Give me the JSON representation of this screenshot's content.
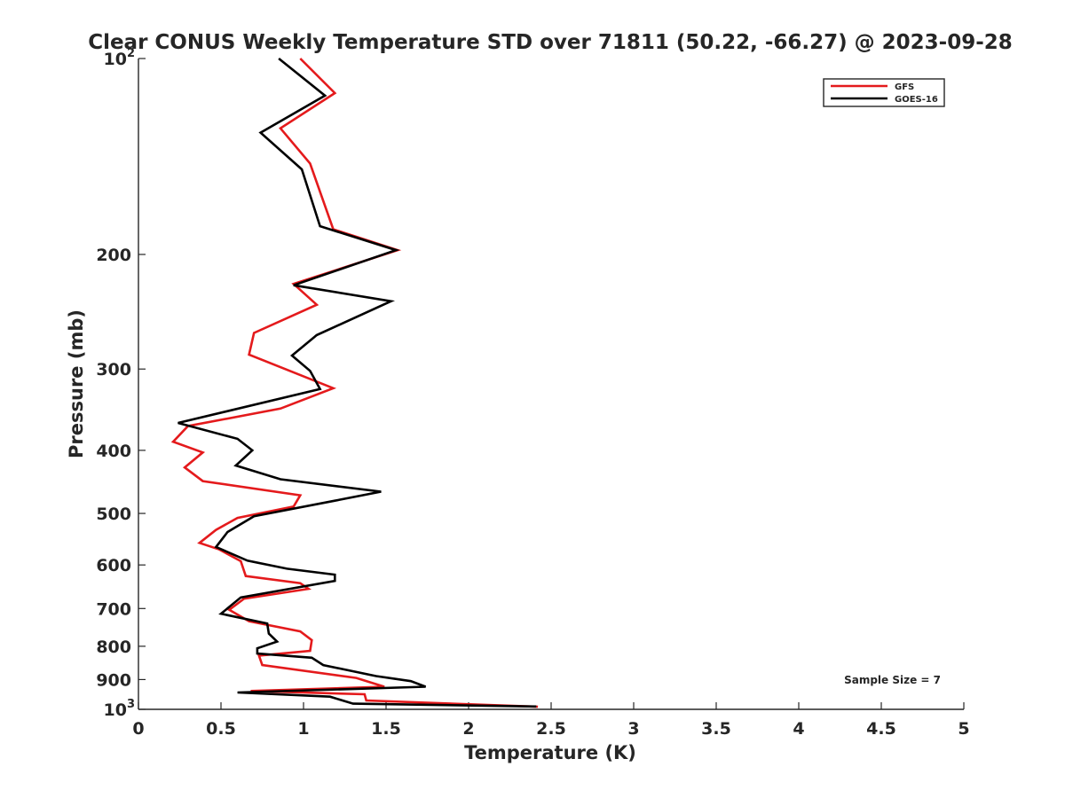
{
  "chart_data": {
    "type": "line",
    "title": "Clear CONUS Weekly Temperature STD over 71811 (50.22, -66.27) @ 2023-09-28",
    "xlabel": "Temperature (K)",
    "ylabel": "Pressure (mb)",
    "xlim": [
      0,
      5
    ],
    "ylim": [
      100,
      1000
    ],
    "y_scale": "log",
    "y_reversed": true,
    "grid": false,
    "legend_position": "top-right",
    "x_ticks": [
      {
        "value": 0,
        "label": "0"
      },
      {
        "value": 0.5,
        "label": "0.5"
      },
      {
        "value": 1,
        "label": "1"
      },
      {
        "value": 1.5,
        "label": "1.5"
      },
      {
        "value": 2,
        "label": "2"
      },
      {
        "value": 2.5,
        "label": "2.5"
      },
      {
        "value": 3,
        "label": "3"
      },
      {
        "value": 3.5,
        "label": "3.5"
      },
      {
        "value": 4,
        "label": "4"
      },
      {
        "value": 4.5,
        "label": "4.5"
      },
      {
        "value": 5,
        "label": "5"
      }
    ],
    "y_ticks": [
      {
        "value": 100,
        "label": "10",
        "sup": "2"
      },
      {
        "value": 200,
        "label": "200"
      },
      {
        "value": 300,
        "label": "300"
      },
      {
        "value": 400,
        "label": "400"
      },
      {
        "value": 500,
        "label": "500"
      },
      {
        "value": 600,
        "label": "600"
      },
      {
        "value": 700,
        "label": "700"
      },
      {
        "value": 800,
        "label": "800"
      },
      {
        "value": 900,
        "label": "900"
      },
      {
        "value": 1000,
        "label": "10",
        "sup": "3"
      }
    ],
    "series": [
      {
        "name": "GFS",
        "color": "#e41a1c",
        "points": [
          [
            0.98,
            100
          ],
          [
            1.19,
            113
          ],
          [
            0.86,
            128
          ],
          [
            1.04,
            145
          ],
          [
            1.18,
            183
          ],
          [
            1.57,
            197
          ],
          [
            0.94,
            222
          ],
          [
            1.08,
            239
          ],
          [
            0.7,
            264
          ],
          [
            0.67,
            285
          ],
          [
            1.18,
            321
          ],
          [
            0.86,
            345
          ],
          [
            0.3,
            367
          ],
          [
            0.21,
            388
          ],
          [
            0.39,
            403
          ],
          [
            0.28,
            425
          ],
          [
            0.39,
            446
          ],
          [
            0.98,
            469
          ],
          [
            0.94,
            488
          ],
          [
            0.6,
            508
          ],
          [
            0.47,
            530
          ],
          [
            0.37,
            555
          ],
          [
            0.49,
            568
          ],
          [
            0.62,
            592
          ],
          [
            0.65,
            624
          ],
          [
            0.98,
            640
          ],
          [
            1.03,
            653
          ],
          [
            0.64,
            676
          ],
          [
            0.55,
            703
          ],
          [
            0.67,
            732
          ],
          [
            0.98,
            759
          ],
          [
            1.05,
            783
          ],
          [
            1.04,
            813
          ],
          [
            0.73,
            827
          ],
          [
            0.75,
            855
          ],
          [
            1.32,
            895
          ],
          [
            1.49,
            923
          ],
          [
            0.68,
            937
          ],
          [
            1.37,
            948
          ],
          [
            1.38,
            969
          ],
          [
            2.42,
            991
          ]
        ]
      },
      {
        "name": "GOES-16",
        "color": "#000000",
        "points": [
          [
            0.85,
            100
          ],
          [
            1.13,
            114
          ],
          [
            0.74,
            130
          ],
          [
            0.99,
            148
          ],
          [
            1.1,
            181
          ],
          [
            1.56,
            197
          ],
          [
            0.94,
            223
          ],
          [
            1.53,
            236
          ],
          [
            1.08,
            266
          ],
          [
            0.93,
            286
          ],
          [
            1.04,
            302
          ],
          [
            1.1,
            322
          ],
          [
            0.24,
            363
          ],
          [
            0.6,
            384
          ],
          [
            0.69,
            400
          ],
          [
            0.59,
            422
          ],
          [
            0.86,
            443
          ],
          [
            1.47,
            463
          ],
          [
            1.19,
            478
          ],
          [
            0.7,
            505
          ],
          [
            0.54,
            534
          ],
          [
            0.47,
            563
          ],
          [
            0.66,
            591
          ],
          [
            0.9,
            608
          ],
          [
            1.19,
            621
          ],
          [
            1.19,
            635
          ],
          [
            0.62,
            673
          ],
          [
            0.5,
            713
          ],
          [
            0.78,
            738
          ],
          [
            0.79,
            765
          ],
          [
            0.84,
            787
          ],
          [
            0.72,
            806
          ],
          [
            0.72,
            821
          ],
          [
            1.05,
            833
          ],
          [
            1.12,
            855
          ],
          [
            1.44,
            889
          ],
          [
            1.65,
            905
          ],
          [
            1.74,
            923
          ],
          [
            0.6,
            942
          ],
          [
            1.16,
            956
          ],
          [
            1.3,
            980
          ],
          [
            2.41,
            990
          ]
        ]
      }
    ],
    "annotations": [
      {
        "text": "Sample Size = 7"
      }
    ]
  }
}
